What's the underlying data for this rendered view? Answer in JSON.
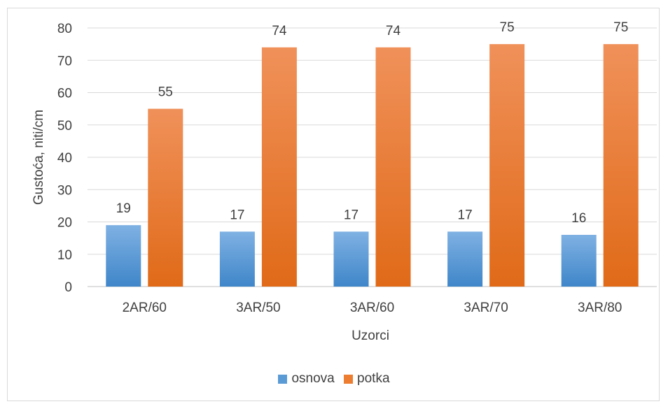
{
  "chart_data": {
    "type": "bar",
    "title": "",
    "xlabel": "Uzorci",
    "ylabel": "Gustoća, niti/cm",
    "categories": [
      "2AR/60",
      "3AR/50",
      "3AR/60",
      "3AR/70",
      "3AR/80"
    ],
    "ylim": [
      0,
      80
    ],
    "yticks": [
      0,
      10,
      20,
      30,
      40,
      50,
      60,
      70,
      80
    ],
    "grid": true,
    "legend_position": "bottom",
    "series": [
      {
        "name": "osnova",
        "values": [
          19,
          17,
          17,
          17,
          16
        ],
        "color": "#5b9bd5"
      },
      {
        "name": "potka",
        "values": [
          55,
          74,
          74,
          75,
          75
        ],
        "color": "#ed7d31"
      }
    ]
  }
}
